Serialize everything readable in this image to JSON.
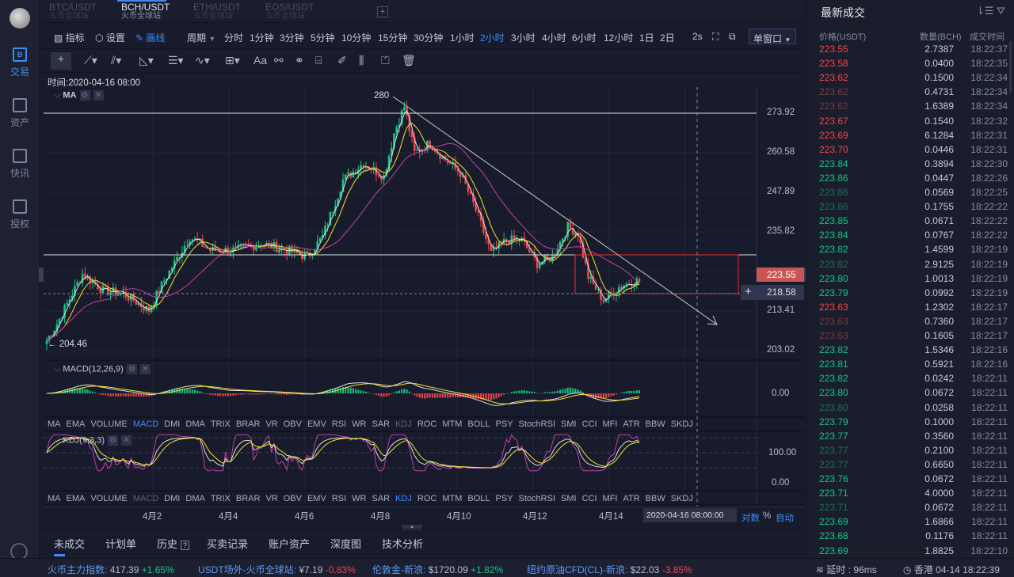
{
  "colors": {
    "up": "#16c784",
    "down": "#f0464d",
    "accent": "#3d8bf5",
    "ma_fast": "#f2e22b",
    "ma_slow": "#c43ea8",
    "ma_white": "#e0e0e0"
  },
  "sidebar": {
    "items": [
      {
        "label": "交易",
        "icon": "B"
      },
      {
        "label": "资产",
        "icon": "wallet"
      },
      {
        "label": "快讯",
        "icon": "news"
      },
      {
        "label": "授权",
        "icon": "key"
      }
    ]
  },
  "tabs": [
    {
      "pair": "BTC/USDT",
      "exchange": "火币全球站"
    },
    {
      "pair": "BCH/USDT",
      "exchange": "火币全球站"
    },
    {
      "pair": "ETH/USDT",
      "exchange": "火币全球站"
    },
    {
      "pair": "EOS/USDT",
      "exchange": "火币全球站"
    }
  ],
  "toolbar": {
    "indicator": "指标",
    "settings": "设置",
    "draw": "画线",
    "period": "周期",
    "intervals": [
      "分时",
      "1分钟",
      "3分钟",
      "5分钟",
      "10分钟",
      "15分钟",
      "30分钟",
      "1小时",
      "2小时",
      "3小时",
      "4小时",
      "6小时",
      "12小时",
      "1日",
      "2日"
    ],
    "active_interval": "2小时",
    "refresh": "2s",
    "window_mode": "单窗口"
  },
  "chart": {
    "time_label": "时间:2020-04-16 08:00",
    "main_indicator": "MA",
    "high_label": "280",
    "low_label": "204.46",
    "price_ticks": [
      "273.92",
      "260.58",
      "247.89",
      "235.82",
      "213.41",
      "203.02"
    ],
    "last_price": "223.55",
    "cursor_price": "218.58",
    "price_anchors": [
      [
        0,
        206
      ],
      [
        4,
        211
      ],
      [
        14,
        226
      ],
      [
        22,
        221
      ],
      [
        30,
        220
      ],
      [
        40,
        215
      ],
      [
        46,
        224
      ],
      [
        56,
        237
      ],
      [
        64,
        233
      ],
      [
        74,
        233
      ],
      [
        84,
        235
      ],
      [
        94,
        233
      ],
      [
        102,
        231
      ],
      [
        108,
        237
      ],
      [
        116,
        254
      ],
      [
        124,
        259
      ],
      [
        132,
        255
      ],
      [
        136,
        268
      ],
      [
        140,
        276
      ],
      [
        144,
        262
      ],
      [
        150,
        265
      ],
      [
        156,
        260
      ],
      [
        162,
        256
      ],
      [
        168,
        245
      ],
      [
        174,
        232
      ],
      [
        180,
        236
      ],
      [
        186,
        236
      ],
      [
        192,
        229
      ],
      [
        198,
        231
      ],
      [
        204,
        240
      ],
      [
        208,
        238
      ],
      [
        212,
        225
      ],
      [
        218,
        218
      ],
      [
        224,
        222
      ],
      [
        230,
        224
      ],
      [
        232,
        223.55
      ]
    ],
    "macd": {
      "title": "MACD(12,26,9)",
      "zero": "0.00"
    },
    "kdj": {
      "title": "KDJ(9,3,3)",
      "ticks": [
        "100.00",
        "0.00"
      ]
    },
    "indicators": [
      "MA",
      "EMA",
      "VOLUME",
      "MACD",
      "DMI",
      "DMA",
      "TRIX",
      "BRAR",
      "VR",
      "OBV",
      "EMV",
      "RSI",
      "WR",
      "SAR",
      "KDJ",
      "ROC",
      "MTM",
      "BOLL",
      "PSY",
      "StochRSI",
      "SMI",
      "CCI",
      "MFI",
      "ATR",
      "BBW",
      "SKDJ"
    ],
    "dates": [
      "4月2",
      "4月4",
      "4月6",
      "4月8",
      "4月10",
      "4月12",
      "4月14"
    ],
    "cursor_date": "2020-04-16 08:00:00",
    "scale_log": "对数",
    "scale_pct": "%",
    "scale_auto": "自动"
  },
  "trades": {
    "title": "最新成交",
    "headers": [
      "价格(USDT)",
      "数量(BCH)",
      "成交时间"
    ],
    "rows": [
      [
        "223.55",
        "2.7387",
        "18:22:37",
        "down"
      ],
      [
        "223.58",
        "0.0400",
        "18:22:35",
        "down"
      ],
      [
        "223.62",
        "0.1500",
        "18:22:34",
        "down"
      ],
      [
        "223.62",
        "0.4731",
        "18:22:34",
        "down-dim"
      ],
      [
        "223.62",
        "1.6389",
        "18:22:34",
        "down-dim"
      ],
      [
        "223.67",
        "0.1540",
        "18:22:32",
        "down"
      ],
      [
        "223.69",
        "6.1284",
        "18:22:31",
        "down"
      ],
      [
        "223.70",
        "0.0446",
        "18:22:31",
        "down"
      ],
      [
        "223.84",
        "0.3894",
        "18:22:30",
        "up"
      ],
      [
        "223.86",
        "0.0447",
        "18:22:26",
        "up"
      ],
      [
        "223.86",
        "0.0569",
        "18:22:25",
        "up-dim"
      ],
      [
        "223.86",
        "0.1755",
        "18:22:22",
        "up-dim"
      ],
      [
        "223.85",
        "0.0671",
        "18:22:22",
        "up"
      ],
      [
        "223.84",
        "0.0767",
        "18:22:22",
        "up"
      ],
      [
        "223.82",
        "1.4599",
        "18:22:19",
        "up"
      ],
      [
        "223.82",
        "2.9125",
        "18:22:19",
        "up-dim"
      ],
      [
        "223.80",
        "1.0013",
        "18:22:19",
        "up"
      ],
      [
        "223.79",
        "0.0992",
        "18:22:19",
        "up"
      ],
      [
        "223.63",
        "1.2302",
        "18:22:17",
        "down"
      ],
      [
        "223.63",
        "0.7360",
        "18:22:17",
        "down-dim"
      ],
      [
        "223.63",
        "0.1605",
        "18:22:17",
        "down-dim"
      ],
      [
        "223.82",
        "1.5346",
        "18:22:16",
        "up"
      ],
      [
        "223.81",
        "0.5921",
        "18:22:16",
        "up"
      ],
      [
        "223.82",
        "0.0242",
        "18:22:11",
        "up"
      ],
      [
        "223.80",
        "0.0672",
        "18:22:11",
        "up"
      ],
      [
        "223.80",
        "0.0258",
        "18:22:11",
        "up-dim"
      ],
      [
        "223.79",
        "0.1000",
        "18:22:11",
        "up"
      ],
      [
        "223.77",
        "0.3560",
        "18:22:11",
        "up"
      ],
      [
        "223.77",
        "0.2100",
        "18:22:11",
        "up-dim"
      ],
      [
        "223.77",
        "0.6650",
        "18:22:11",
        "up-dim"
      ],
      [
        "223.76",
        "0.0672",
        "18:22:11",
        "up"
      ],
      [
        "223.71",
        "4.0000",
        "18:22:11",
        "up"
      ],
      [
        "223.71",
        "0.0672",
        "18:22:11",
        "up-dim"
      ],
      [
        "223.69",
        "1.6866",
        "18:22:11",
        "up"
      ],
      [
        "223.68",
        "0.1176",
        "18:22:11",
        "up"
      ],
      [
        "223.69",
        "1.8825",
        "18:22:10",
        "up"
      ]
    ]
  },
  "bottom_tabs": [
    "未成交",
    "计划单",
    "历史",
    "买卖记录",
    "账户资产",
    "深度图",
    "技术分析"
  ],
  "status": {
    "items": [
      {
        "label": "火币主力指数:",
        "value": "417.39",
        "change": "+1.65%"
      },
      {
        "label": "USDT场外-火币全球站:",
        "value": "¥7.19",
        "change": "-0.83%"
      },
      {
        "label": "伦敦金-新浪:",
        "value": "$1720.09",
        "change": "+1.82%"
      },
      {
        "label": "纽约原油CFD(CL)-新浪:",
        "value": "$22.03",
        "change": "-3.85%"
      }
    ],
    "latency": "延时 : 96ms",
    "clock": "香港 04-14 18:22:39"
  }
}
